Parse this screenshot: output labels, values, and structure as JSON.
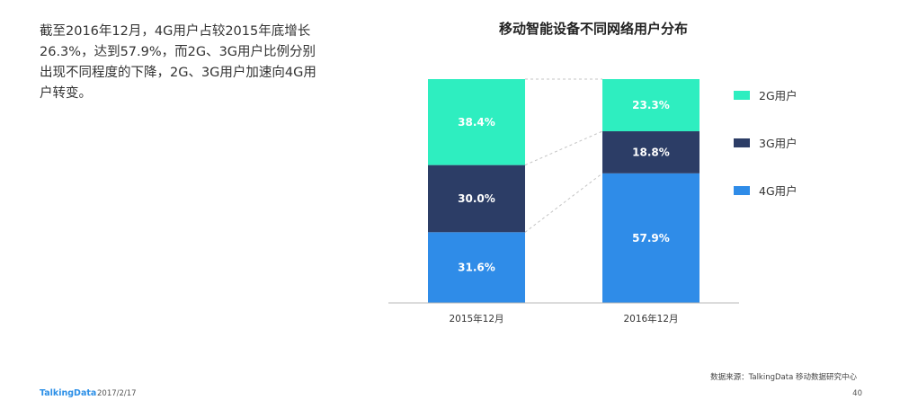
{
  "summary_text": "截至2016年12月，4G用户占较2015年底增长26.3%，达到57.9%，而2G、3G用户比例分别出现不同程度的下降，2G、3G用户加速向4G用户转变。",
  "chart_data": {
    "type": "bar",
    "stacked": true,
    "title": "移动智能设备不同网络用户分布",
    "categories": [
      "2015年12月",
      "2016年12月"
    ],
    "series": [
      {
        "name": "4G用户",
        "values": [
          31.6,
          57.9
        ],
        "labels": [
          "31.6%",
          "57.9%"
        ],
        "color": "#2f8ce8"
      },
      {
        "name": "3G用户",
        "values": [
          30.0,
          18.8
        ],
        "labels": [
          "30.0%",
          "18.8%"
        ],
        "color": "#2c3d66"
      },
      {
        "name": "2G用户",
        "values": [
          38.4,
          23.3
        ],
        "labels": [
          "38.4%",
          "23.3%"
        ],
        "color": "#2eeec0"
      }
    ],
    "legend_order": [
      "2G用户",
      "3G用户",
      "4G用户"
    ],
    "legend_position": "right",
    "connector_lines": "dashed",
    "ylim": [
      0,
      100
    ],
    "grid": false
  },
  "footer": {
    "source": "数据来源：TalkingData 移动数据研究中心",
    "brand": "TalkingData",
    "date": "2017/2/17",
    "page": "40"
  },
  "colors": {
    "brand": "#2b8fe7",
    "label_text": "#ffffff"
  }
}
